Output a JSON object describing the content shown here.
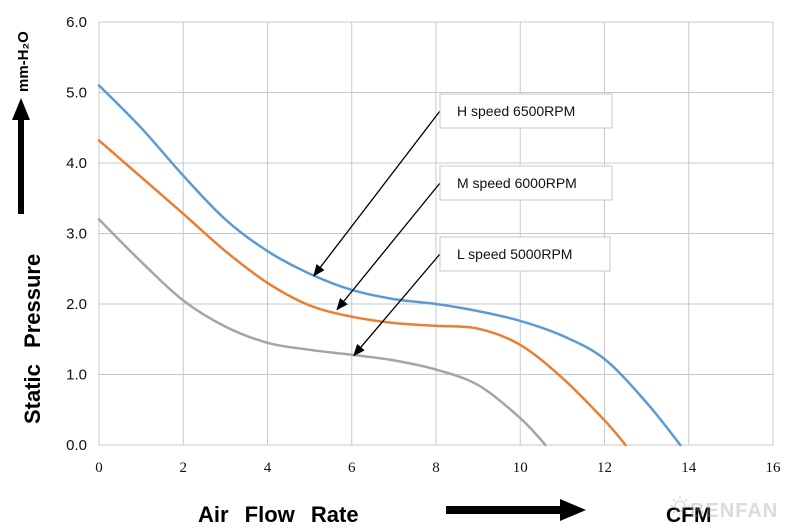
{
  "chart_data": {
    "type": "line",
    "xlabel": "Air Flow Rate",
    "xunit": "CFM",
    "ylabel": "Static Pressure",
    "yunit": "mm-H₂O",
    "xlim": [
      0,
      16
    ],
    "ylim": [
      0,
      6
    ],
    "x_ticks": [
      "0",
      "2",
      "4",
      "6",
      "8",
      "10",
      "12",
      "14",
      "16"
    ],
    "y_ticks": [
      "0.0",
      "1.0",
      "2.0",
      "3.0",
      "4.0",
      "5.0",
      "6.0"
    ],
    "grid": true,
    "series": [
      {
        "name": "H speed 6500RPM",
        "color": "#5b9bd5",
        "points": [
          [
            0,
            5.1
          ],
          [
            1,
            4.5
          ],
          [
            2,
            3.82
          ],
          [
            3,
            3.2
          ],
          [
            4,
            2.75
          ],
          [
            5,
            2.43
          ],
          [
            6,
            2.2
          ],
          [
            7,
            2.07
          ],
          [
            8,
            2.0
          ],
          [
            9,
            1.9
          ],
          [
            10,
            1.76
          ],
          [
            11,
            1.55
          ],
          [
            12,
            1.22
          ],
          [
            13,
            0.6
          ],
          [
            13.8,
            0.0
          ]
        ]
      },
      {
        "name": "M speed 6000RPM",
        "color": "#ed7d31",
        "points": [
          [
            0,
            4.32
          ],
          [
            1,
            3.8
          ],
          [
            2,
            3.28
          ],
          [
            3,
            2.75
          ],
          [
            4,
            2.3
          ],
          [
            5,
            1.98
          ],
          [
            6,
            1.82
          ],
          [
            7,
            1.73
          ],
          [
            8,
            1.69
          ],
          [
            9,
            1.65
          ],
          [
            10,
            1.42
          ],
          [
            11,
            0.95
          ],
          [
            12,
            0.35
          ],
          [
            12.5,
            0.0
          ]
        ]
      },
      {
        "name": "L speed 5000RPM",
        "color": "#a5a5a5",
        "points": [
          [
            0,
            3.2
          ],
          [
            1,
            2.6
          ],
          [
            2,
            2.05
          ],
          [
            3,
            1.68
          ],
          [
            4,
            1.45
          ],
          [
            5,
            1.35
          ],
          [
            6,
            1.28
          ],
          [
            7,
            1.2
          ],
          [
            8,
            1.07
          ],
          [
            9,
            0.85
          ],
          [
            10,
            0.38
          ],
          [
            10.6,
            0.0
          ]
        ]
      }
    ],
    "annotations": [
      {
        "text": "H speed  6500RPM",
        "target_series": 0,
        "target": [
          5.1,
          2.4
        ]
      },
      {
        "text": "M speed  6000RPM",
        "target_series": 1,
        "target": [
          5.65,
          1.92
        ]
      },
      {
        "text": "L speed  5000RPM",
        "target_series": 2,
        "target": [
          6.05,
          1.27
        ]
      }
    ]
  },
  "watermark": "BENFAN"
}
